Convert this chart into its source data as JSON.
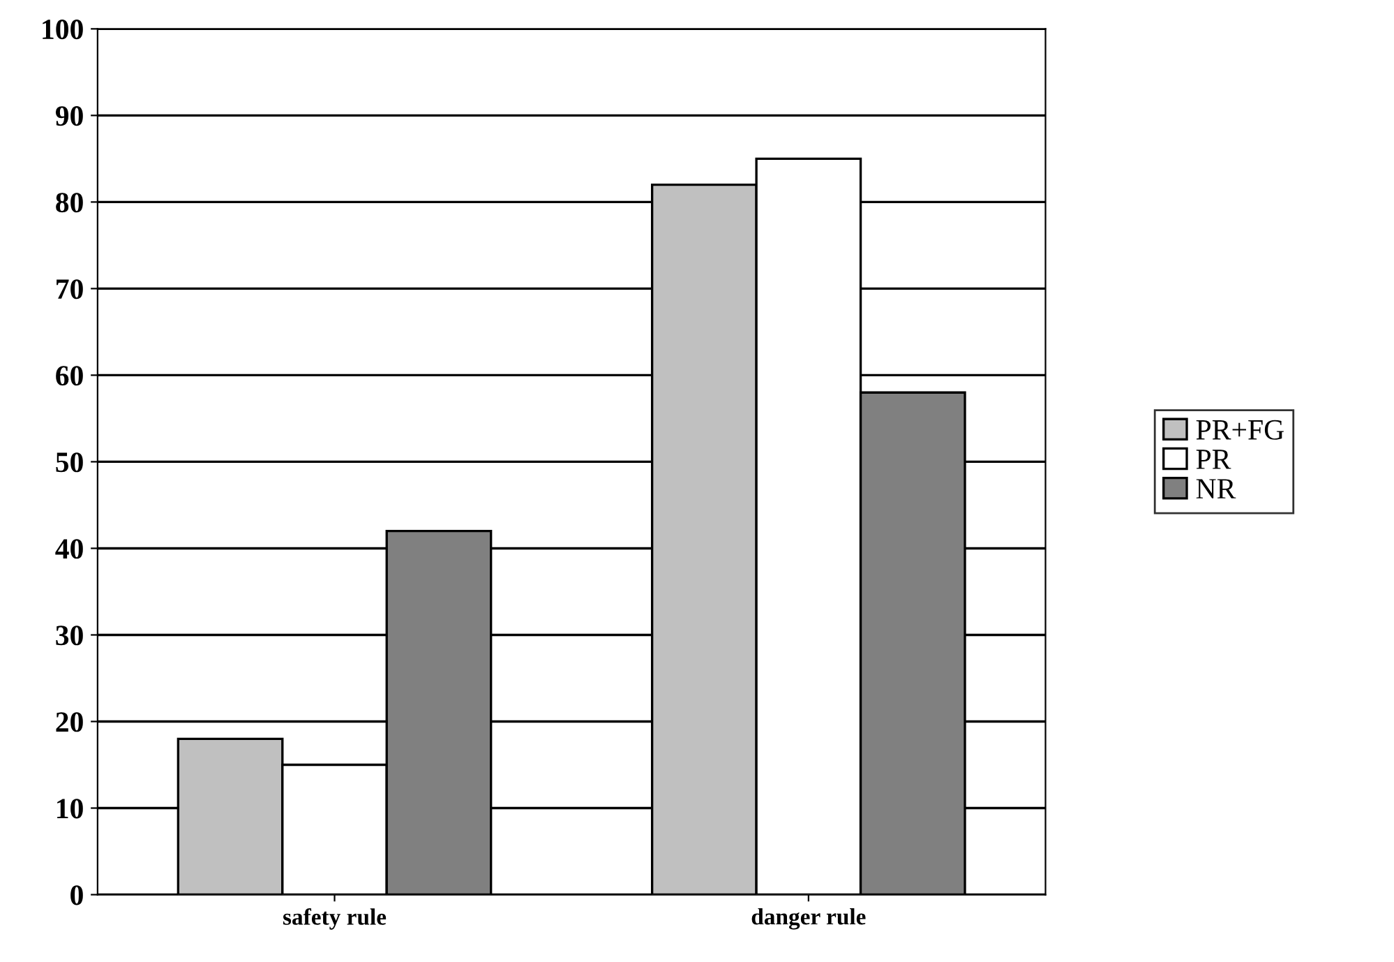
{
  "chart_data": {
    "type": "bar",
    "categories": [
      "safety rule",
      "danger rule"
    ],
    "series": [
      {
        "name": "PR+FG",
        "color": "#c0c0c0",
        "values": [
          18,
          82
        ]
      },
      {
        "name": "PR",
        "color": "#ffffff",
        "values": [
          15,
          85
        ]
      },
      {
        "name": "NR",
        "color": "#808080",
        "values": [
          42,
          58
        ]
      }
    ],
    "ylim": [
      0,
      100
    ],
    "yticks": [
      0,
      10,
      20,
      30,
      40,
      50,
      60,
      70,
      80,
      90,
      100
    ],
    "grid": "y",
    "legend": "right"
  }
}
